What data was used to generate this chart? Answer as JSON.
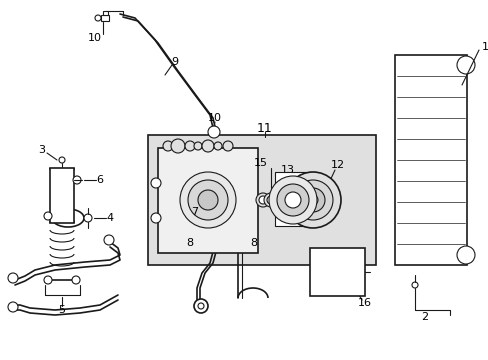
{
  "bg_color": "#ffffff",
  "line_color": "#1a1a1a",
  "shaded_box_color": "#e0e0e0",
  "figsize": [
    4.89,
    3.6
  ],
  "dpi": 100
}
